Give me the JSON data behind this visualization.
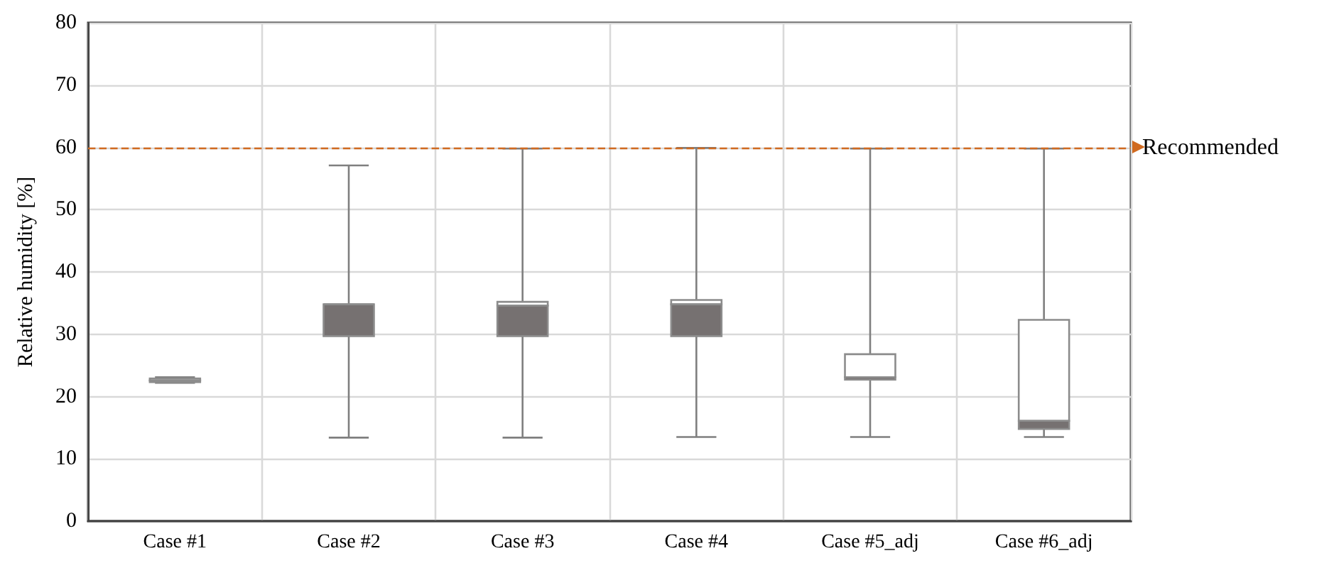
{
  "chart_data": {
    "type": "box",
    "ylabel": "Relative humidity [%]",
    "categories": [
      "Case #1",
      "Case #2",
      "Case #3",
      "Case #4",
      "Case #5_adj",
      "Case #6_adj"
    ],
    "color": "#767171",
    "boxes": [
      {
        "low": 22.2,
        "q1": 22.3,
        "median": 22.6,
        "q3": 22.9,
        "high": 23.1
      },
      {
        "low": 13.4,
        "q1": 29.7,
        "median": 34.8,
        "q3": 34.8,
        "high": 57.1
      },
      {
        "low": 13.4,
        "q1": 29.7,
        "median": 34.6,
        "q3": 35.2,
        "high": 59.8
      },
      {
        "low": 13.5,
        "q1": 29.7,
        "median": 34.8,
        "q3": 35.5,
        "high": 59.9
      },
      {
        "low": 13.5,
        "q1": 22.7,
        "median": 23.1,
        "q3": 26.8,
        "high": 59.8
      },
      {
        "low": 13.5,
        "q1": 14.8,
        "median": 16.1,
        "q3": 32.3,
        "high": 59.8
      }
    ],
    "ylim": [
      0,
      80
    ],
    "yticks": [
      0,
      10,
      20,
      30,
      40,
      50,
      60,
      70,
      80
    ],
    "grid": true,
    "ref_lines": [
      {
        "axis": "y",
        "value": 60,
        "label": "Recommended",
        "color": "#d06a20",
        "line_style": "dashed"
      }
    ]
  }
}
